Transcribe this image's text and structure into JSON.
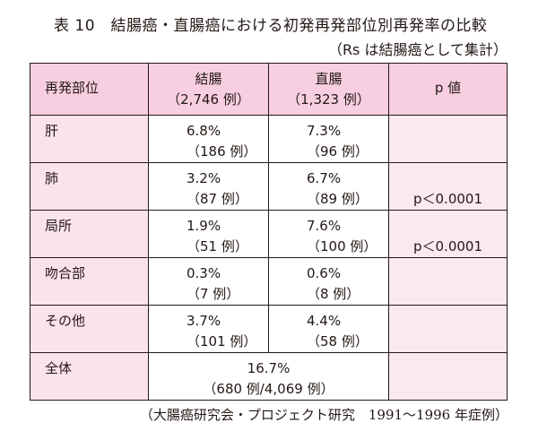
{
  "title": "表 10　結腸癌・直腸癌における初発再発部位別再発率の比較",
  "subtitle": "（Rs は結腸癌として集計）",
  "table": {
    "headers": {
      "site": "再発部位",
      "colon": "結腸",
      "colon_n": "（2,746 例）",
      "rectum": "直腸",
      "rectum_n": "（1,323 例）",
      "p": "p 値"
    },
    "rows": [
      {
        "site": "肝",
        "colon_pct": "6.8%",
        "colon_n": "（186 例）",
        "rectum_pct": "7.3%",
        "rectum_n": "（96 例）",
        "p": ""
      },
      {
        "site": "肺",
        "colon_pct": "3.2%",
        "colon_n": "（87 例）",
        "rectum_pct": "6.7%",
        "rectum_n": "（89 例）",
        "p": "p＜0.0001"
      },
      {
        "site": "局所",
        "colon_pct": "1.9%",
        "colon_n": "（51 例）",
        "rectum_pct": "7.6%",
        "rectum_n": "（100 例）",
        "p": "p＜0.0001"
      },
      {
        "site": "吻合部",
        "colon_pct": "0.3%",
        "colon_n": "（7 例）",
        "rectum_pct": "0.6%",
        "rectum_n": "（8 例）",
        "p": ""
      },
      {
        "site": "その他",
        "colon_pct": "3.7%",
        "colon_n": "（101 例）",
        "rectum_pct": "4.4%",
        "rectum_n": "（58 例）",
        "p": ""
      }
    ],
    "total": {
      "site": "全体",
      "pct": "16.7%",
      "n": "（680 例/4,069 例）"
    }
  },
  "footer": "（大腸癌研究会・プロジェクト研究　1991～1996 年症例）"
}
